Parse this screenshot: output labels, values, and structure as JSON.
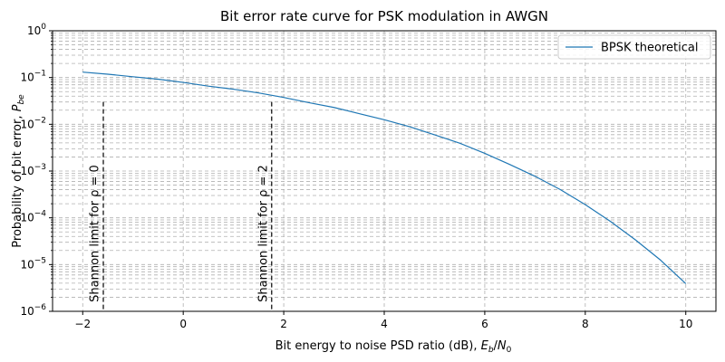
{
  "chart_data": {
    "type": "line",
    "title": "Bit error rate curve for PSK modulation in AWGN",
    "xlabel": "Bit energy to noise PSD ratio (dB), E_b/N_0",
    "ylabel": "Probability of bit error, P_be",
    "yscale": "log",
    "xlim": [
      -2.6,
      10.6
    ],
    "ylim": [
      1e-06,
      1
    ],
    "grid": "both (major and minor, dashed)",
    "legend_placement": "top-right",
    "x_ticks": [
      -2,
      0,
      2,
      4,
      6,
      8,
      10
    ],
    "y_ticks": [
      {
        "value": 1e-06,
        "base": "10",
        "exp": "−6"
      },
      {
        "value": 1e-05,
        "base": "10",
        "exp": "−5"
      },
      {
        "value": 0.0001,
        "base": "10",
        "exp": "−4"
      },
      {
        "value": 0.001,
        "base": "10",
        "exp": "−3"
      },
      {
        "value": 0.01,
        "base": "10",
        "exp": "−2"
      },
      {
        "value": 0.1,
        "base": "10",
        "exp": "−1"
      },
      {
        "value": 1,
        "base": "10",
        "exp": "0"
      }
    ],
    "series": [
      {
        "name": "BPSK theoretical",
        "color": "#1f77b4",
        "x": [
          -2,
          -1.5,
          -1,
          -0.5,
          0,
          0.5,
          1,
          1.5,
          2,
          2.5,
          3,
          3.5,
          4,
          4.5,
          5,
          5.5,
          6,
          6.5,
          7,
          7.5,
          8,
          8.5,
          9,
          9.5,
          10
        ],
        "y": [
          0.1306,
          0.1177,
          0.104,
          0.0921,
          0.0786,
          0.0655,
          0.0563,
          0.0468,
          0.0375,
          0.029,
          0.0229,
          0.0169,
          0.0125,
          0.0089,
          0.00595,
          0.00395,
          0.00239,
          0.00138,
          0.000773,
          0.000403,
          0.000191,
          8.38e-05,
          3.36e-05,
          1.24e-05,
          3.9e-06
        ]
      }
    ],
    "annotations": [
      {
        "name": "Shannon limit for ρ = 0",
        "x": -1.59,
        "y_range": [
          1e-06,
          0.03
        ],
        "style": "dashed",
        "color": "#000000"
      },
      {
        "name": "Shannon limit for ρ = 2",
        "x": 1.76,
        "y_range": [
          1e-06,
          0.03
        ],
        "style": "dashed",
        "color": "#000000"
      }
    ]
  }
}
